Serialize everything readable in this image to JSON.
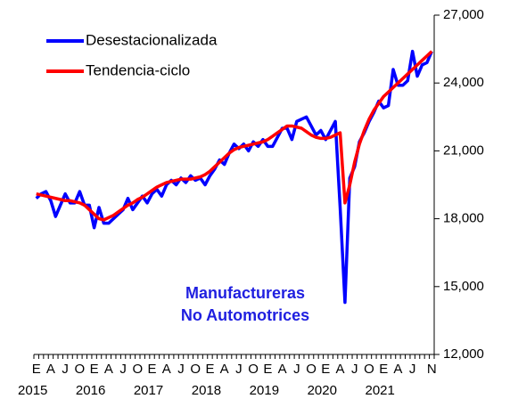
{
  "chart_data": {
    "type": "line",
    "legend_position": "upper-left",
    "annotation": [
      "Manufactureras",
      "No Automotrices"
    ],
    "annotation_color": "#1f1fe0",
    "categories": [
      "E",
      null,
      null,
      "A",
      null,
      null,
      "J",
      null,
      null,
      "O",
      null,
      null,
      "E",
      null,
      null,
      "A",
      null,
      null,
      "J",
      null,
      null,
      "O",
      null,
      null,
      "E",
      null,
      null,
      "A",
      null,
      null,
      "J",
      null,
      null,
      "O",
      null,
      null,
      "E",
      null,
      null,
      "A",
      null,
      null,
      "J",
      null,
      null,
      "O",
      null,
      null,
      "E",
      null,
      null,
      "A",
      null,
      null,
      "J",
      null,
      null,
      "O",
      null,
      null,
      "E",
      null,
      null,
      "A",
      null,
      null,
      "J",
      null,
      null,
      "O",
      null,
      null,
      "E",
      null,
      null,
      "A",
      null,
      null,
      "J",
      null,
      null,
      null,
      "N"
    ],
    "years": [
      "2015",
      "2016",
      "2017",
      "2018",
      "2019",
      "2020",
      "2021"
    ],
    "series": [
      {
        "name": "Desestacionalizada",
        "color": "#0000ff",
        "values": [
          18900,
          19100,
          19200,
          18800,
          18100,
          18600,
          19100,
          18700,
          18700,
          19200,
          18600,
          18600,
          17600,
          18500,
          17800,
          17800,
          18000,
          18200,
          18400,
          18900,
          18400,
          18700,
          19000,
          18700,
          19100,
          19300,
          19000,
          19500,
          19700,
          19500,
          19800,
          19600,
          19900,
          19700,
          19800,
          19500,
          19900,
          20200,
          20600,
          20400,
          20900,
          21300,
          21100,
          21300,
          21000,
          21400,
          21200,
          21500,
          21200,
          21200,
          21600,
          22000,
          22000,
          21500,
          22300,
          22400,
          22500,
          22100,
          21700,
          21900,
          21500,
          21900,
          22300,
          18500,
          14300,
          19800,
          20300,
          21400,
          21800,
          22300,
          22700,
          23200,
          22900,
          23000,
          24600,
          23900,
          23900,
          24100,
          25400,
          24300,
          24800,
          24900,
          25400
        ]
      },
      {
        "name": "Tendencia-ciclo",
        "color": "#ff0000",
        "values": [
          19100,
          19050,
          19000,
          18950,
          18900,
          18850,
          18800,
          18800,
          18750,
          18700,
          18600,
          18400,
          18200,
          18000,
          17950,
          18050,
          18150,
          18300,
          18450,
          18600,
          18700,
          18850,
          18950,
          19100,
          19250,
          19400,
          19500,
          19600,
          19650,
          19700,
          19750,
          19750,
          19750,
          19800,
          19850,
          19950,
          20100,
          20300,
          20500,
          20700,
          20900,
          21050,
          21150,
          21200,
          21250,
          21300,
          21350,
          21400,
          21500,
          21650,
          21800,
          21950,
          22100,
          22100,
          22050,
          22000,
          21850,
          21700,
          21600,
          21550,
          21550,
          21600,
          21700,
          21800,
          18700,
          19500,
          20500,
          21300,
          21900,
          22400,
          22800,
          23100,
          23400,
          23600,
          23800,
          24000,
          24200,
          24400,
          24600,
          24800,
          25000,
          25200,
          25400
        ]
      }
    ],
    "ylim": [
      12000,
      27000
    ],
    "yticks": [
      {
        "value": 12000,
        "label": "12,000"
      },
      {
        "value": 15000,
        "label": "15,000"
      },
      {
        "value": 18000,
        "label": "18,000"
      },
      {
        "value": 21000,
        "label": "21,000"
      },
      {
        "value": 24000,
        "label": "24,000"
      },
      {
        "value": 27000,
        "label": "27,000"
      }
    ]
  }
}
